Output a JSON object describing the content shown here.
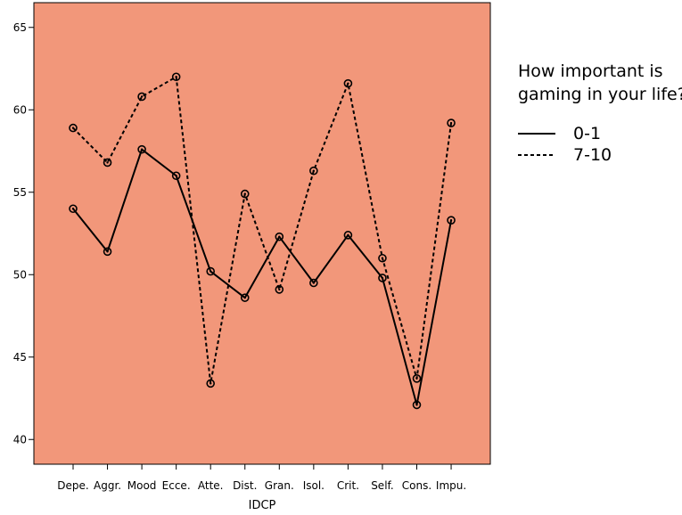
{
  "chart_data": {
    "type": "line",
    "xlabel": "IDCP",
    "ylabel": "",
    "categories": [
      "Depe.",
      "Aggr.",
      "Mood",
      "Ecce.",
      "Atte.",
      "Dist.",
      "Gran.",
      "Isol.",
      "Crit.",
      "Self.",
      "Cons.",
      "Impu."
    ],
    "ylim": [
      38.5,
      66.5
    ],
    "yticks": [
      40,
      45,
      50,
      55,
      60,
      65
    ],
    "grid": false,
    "legend_position": "right",
    "legend_title": [
      "How important is",
      "gaming in your life?"
    ],
    "plot_background": "#f2977a",
    "series": [
      {
        "name": "0-1",
        "line_style": "solid",
        "values": [
          54.0,
          51.4,
          57.6,
          56.0,
          50.2,
          48.6,
          52.3,
          49.5,
          52.4,
          49.8,
          42.1,
          53.3
        ]
      },
      {
        "name": "7-10",
        "line_style": "dashed",
        "values": [
          58.9,
          56.8,
          60.8,
          62.0,
          43.4,
          54.9,
          49.1,
          56.3,
          61.6,
          51.0,
          43.7,
          59.2
        ]
      }
    ]
  }
}
